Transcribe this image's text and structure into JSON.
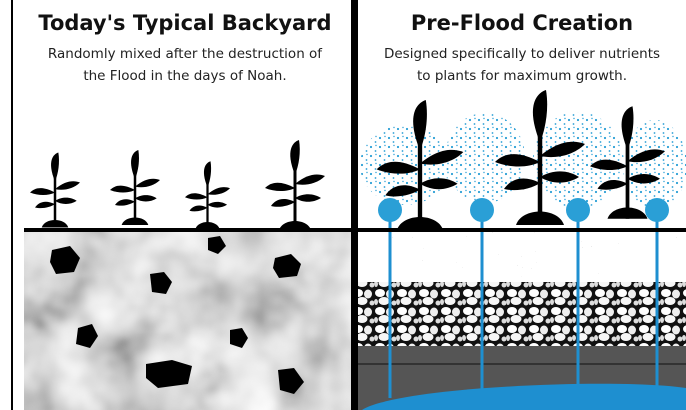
{
  "left": {
    "title": "Today's Typical Backyard",
    "caption": [
      "Randomly mixed after the destruction of",
      "the Flood in the days of Noah."
    ]
  },
  "right": {
    "title": "Pre-Flood Creation",
    "caption": [
      "Designed specifically to deliver nutrients",
      "to plants for maximum growth."
    ]
  }
}
